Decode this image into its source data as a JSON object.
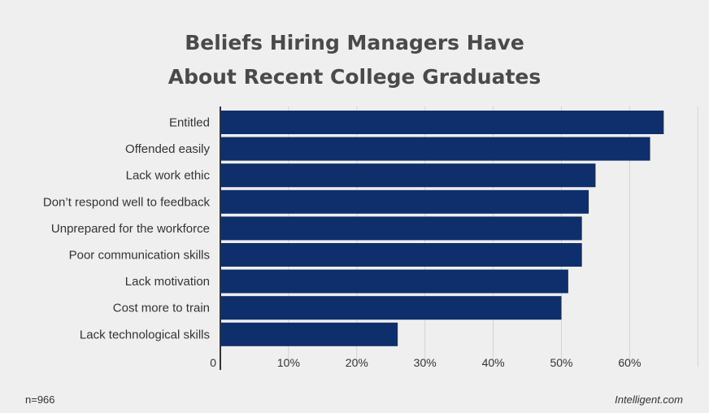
{
  "chart_data": {
    "type": "bar",
    "orientation": "horizontal",
    "title_line1": "Beliefs Hiring Managers Have",
    "title_line2": "About Recent College Graduates",
    "categories": [
      "Entitled",
      "Offended easily",
      "Lack work ethic",
      "Don’t respond well to feedback",
      "Unprepared for the workforce",
      "Poor communication skills",
      "Lack motivation",
      "Cost more to train",
      "Lack technological skills"
    ],
    "values": [
      65,
      63,
      55,
      54,
      53,
      53,
      51,
      50,
      26
    ],
    "xticks": [
      "0",
      "10%",
      "20%",
      "30%",
      "40%",
      "50%",
      "60%"
    ],
    "xlim": [
      0,
      70
    ],
    "grid": true,
    "bar_color": "#0e2f6b"
  },
  "footer": {
    "sample_note": "n=966",
    "source": "Intelligent.com"
  }
}
